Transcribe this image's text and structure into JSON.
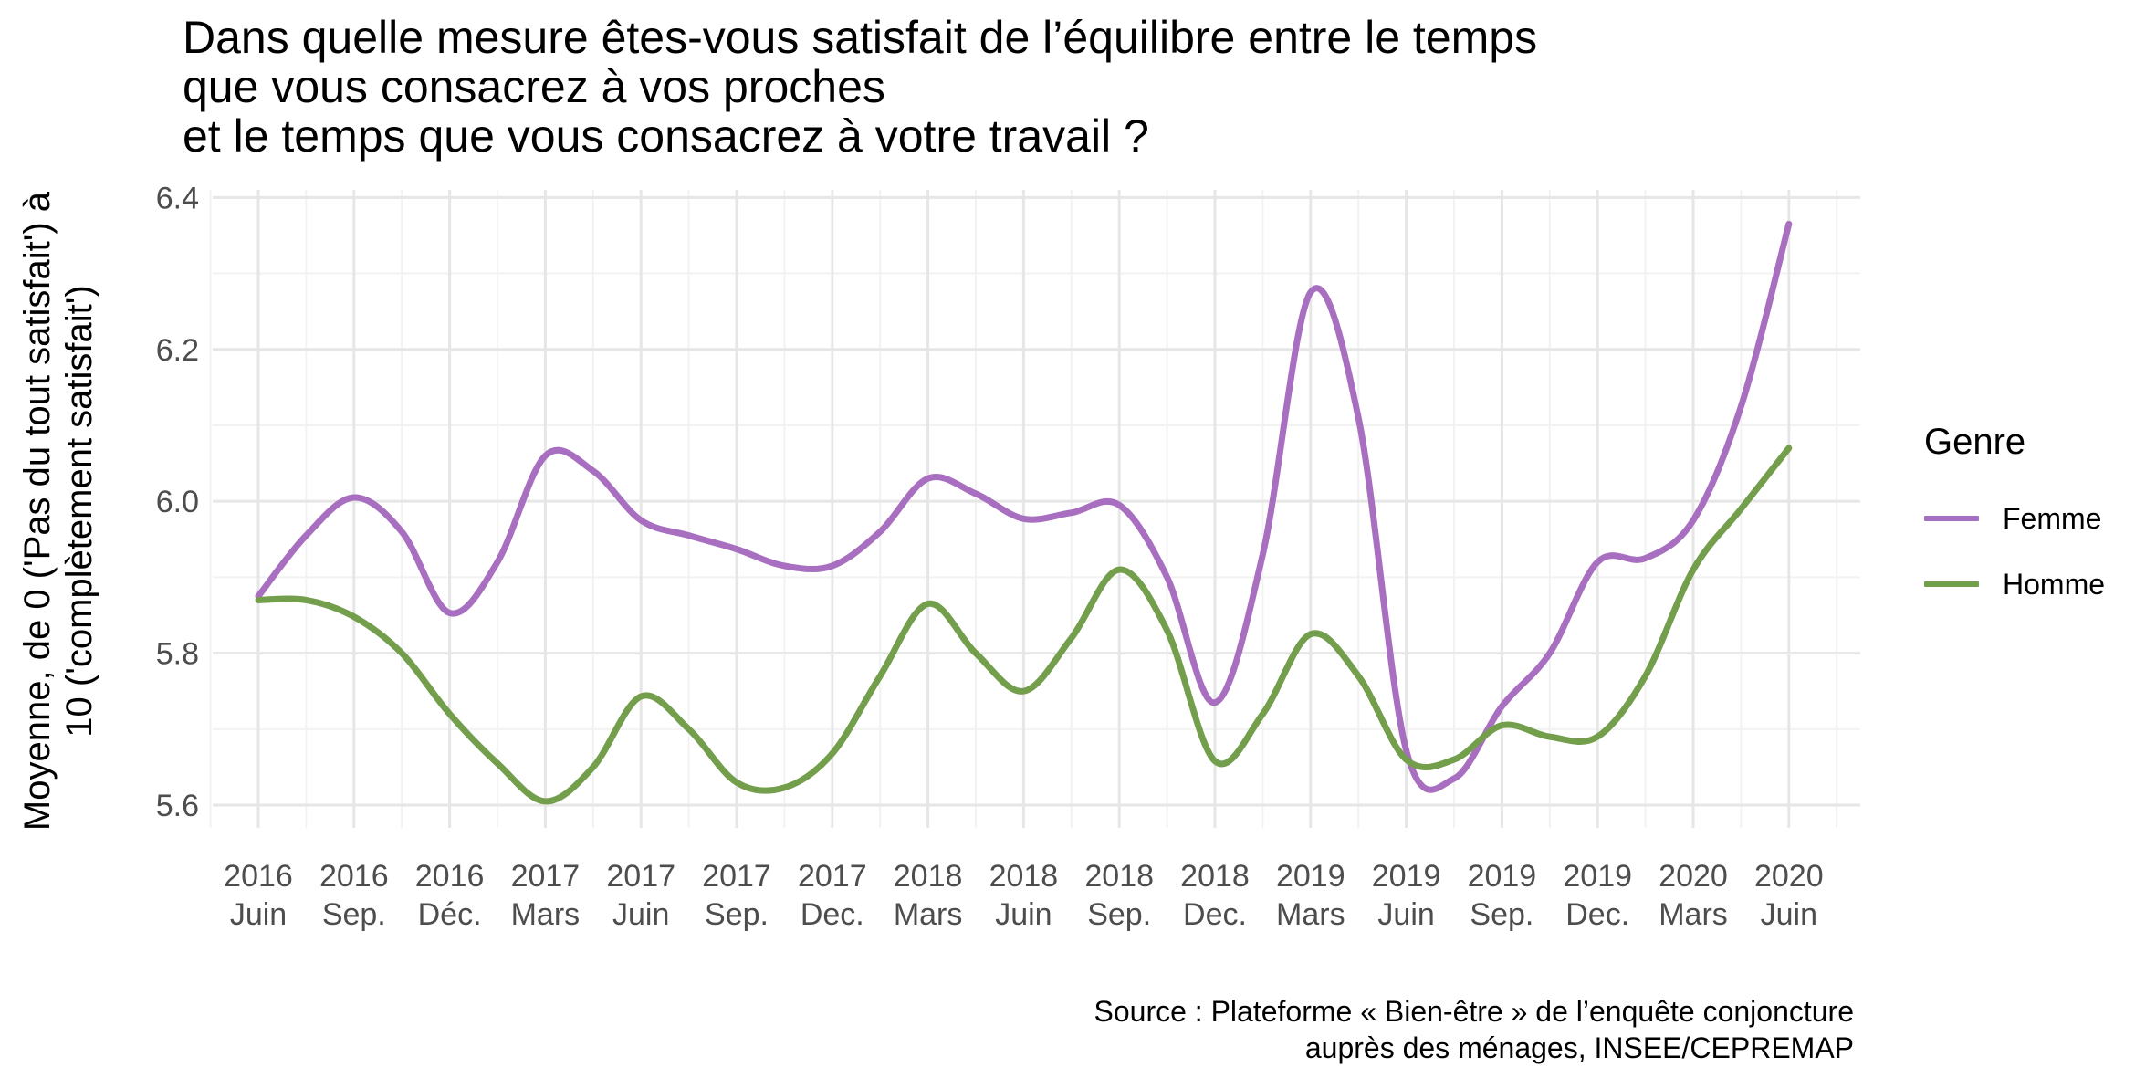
{
  "title_lines": [
    "Dans quelle mesure êtes-vous satisfait de l’équilibre entre le temps",
    "que vous consacrez à vos proches",
    "et le temps que vous consacrez à votre travail ?"
  ],
  "ylabel_lines": [
    "Moyenne, de 0 ('Pas du tout satisfait') à",
    "10 ('complètement satisfait')"
  ],
  "source_lines": [
    "Source : Plateforme « Bien-être » de l’enquête conjoncture",
    "auprès des ménages, INSEE/CEPREMAP"
  ],
  "legend": {
    "title": "Genre"
  },
  "chart_data": {
    "type": "line",
    "ylim": [
      5.57,
      6.41
    ],
    "y_ticks": [
      5.6,
      5.8,
      6.0,
      6.2,
      6.4
    ],
    "grid": true,
    "legend_position": "right",
    "x_ticks": [
      {
        "line1": "2016",
        "line2": "Juin"
      },
      {
        "line1": "2016",
        "line2": "Sep."
      },
      {
        "line1": "2016",
        "line2": "Déc."
      },
      {
        "line1": "2017",
        "line2": "Mars"
      },
      {
        "line1": "2017",
        "line2": "Juin"
      },
      {
        "line1": "2017",
        "line2": "Sep."
      },
      {
        "line1": "2017",
        "line2": "Dec."
      },
      {
        "line1": "2018",
        "line2": "Mars"
      },
      {
        "line1": "2018",
        "line2": "Juin"
      },
      {
        "line1": "2018",
        "line2": "Sep."
      },
      {
        "line1": "2018",
        "line2": "Dec."
      },
      {
        "line1": "2019",
        "line2": "Mars"
      },
      {
        "line1": "2019",
        "line2": "Juin"
      },
      {
        "line1": "2019",
        "line2": "Sep."
      },
      {
        "line1": "2019",
        "line2": "Dec."
      },
      {
        "line1": "2020",
        "line2": "Mars"
      },
      {
        "line1": "2020",
        "line2": "Juin"
      }
    ],
    "series": [
      {
        "name": "Femme",
        "color": "#a86fc0",
        "points": [
          [
            0,
            5.875
          ],
          [
            0.5,
            5.955
          ],
          [
            1,
            6.005
          ],
          [
            1.5,
            5.96
          ],
          [
            2,
            5.853
          ],
          [
            2.5,
            5.92
          ],
          [
            3,
            6.06
          ],
          [
            3.5,
            6.04
          ],
          [
            4,
            5.975
          ],
          [
            4.5,
            5.955
          ],
          [
            5,
            5.937
          ],
          [
            5.5,
            5.915
          ],
          [
            6,
            5.915
          ],
          [
            6.5,
            5.96
          ],
          [
            7,
            6.03
          ],
          [
            7.5,
            6.01
          ],
          [
            8,
            5.977
          ],
          [
            8.5,
            5.985
          ],
          [
            9,
            5.995
          ],
          [
            9.5,
            5.9
          ],
          [
            10,
            5.735
          ],
          [
            10.5,
            5.93
          ],
          [
            11,
            6.275
          ],
          [
            11.5,
            6.11
          ],
          [
            12,
            5.672
          ],
          [
            12.5,
            5.635
          ],
          [
            13,
            5.73
          ],
          [
            13.5,
            5.8
          ],
          [
            14,
            5.92
          ],
          [
            14.5,
            5.925
          ],
          [
            15,
            5.975
          ],
          [
            15.5,
            6.125
          ],
          [
            16,
            6.365
          ]
        ]
      },
      {
        "name": "Homme",
        "color": "#739e4c",
        "points": [
          [
            0,
            5.87
          ],
          [
            0.5,
            5.87
          ],
          [
            1,
            5.848
          ],
          [
            1.5,
            5.8
          ],
          [
            2,
            5.72
          ],
          [
            2.5,
            5.655
          ],
          [
            3,
            5.605
          ],
          [
            3.5,
            5.65
          ],
          [
            4,
            5.743
          ],
          [
            4.5,
            5.7
          ],
          [
            5,
            5.63
          ],
          [
            5.5,
            5.623
          ],
          [
            6,
            5.668
          ],
          [
            6.5,
            5.77
          ],
          [
            7,
            5.865
          ],
          [
            7.5,
            5.8
          ],
          [
            8,
            5.75
          ],
          [
            8.5,
            5.82
          ],
          [
            9,
            5.91
          ],
          [
            9.5,
            5.83
          ],
          [
            10,
            5.658
          ],
          [
            10.5,
            5.72
          ],
          [
            11,
            5.825
          ],
          [
            11.5,
            5.77
          ],
          [
            12,
            5.66
          ],
          [
            12.5,
            5.66
          ],
          [
            13,
            5.705
          ],
          [
            13.5,
            5.69
          ],
          [
            14,
            5.69
          ],
          [
            14.5,
            5.77
          ],
          [
            15,
            5.91
          ],
          [
            15.5,
            5.99
          ],
          [
            16,
            6.07
          ]
        ]
      }
    ]
  }
}
